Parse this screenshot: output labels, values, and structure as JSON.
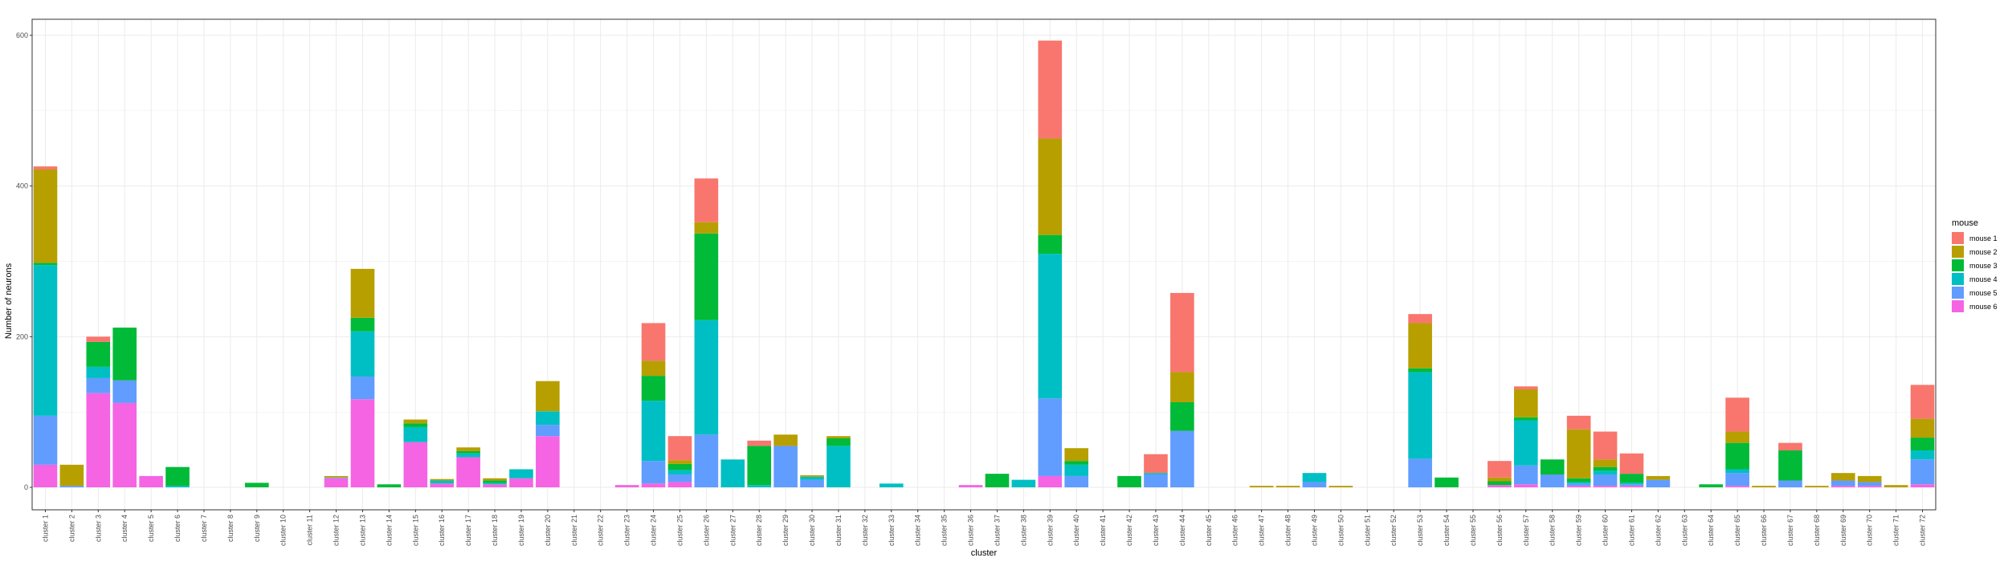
{
  "chart_data": {
    "type": "bar",
    "stacked": true,
    "title": "",
    "xlabel": "cluster",
    "ylabel": "Number of neurons",
    "ylim": [
      0,
      620
    ],
    "yticks": [
      0,
      200,
      400,
      600
    ],
    "grid": true,
    "legend_position": "right",
    "legend_title": "mouse",
    "categories": [
      "cluster 1",
      "cluster 2",
      "cluster 3",
      "cluster 4",
      "cluster 5",
      "cluster 6",
      "cluster 7",
      "cluster 8",
      "cluster 9",
      "cluster 10",
      "cluster 11",
      "cluster 12",
      "cluster 13",
      "cluster 14",
      "cluster 15",
      "cluster 16",
      "cluster 17",
      "cluster 18",
      "cluster 19",
      "cluster 20",
      "cluster 21",
      "cluster 22",
      "cluster 23",
      "cluster 24",
      "cluster 25",
      "cluster 26",
      "cluster 27",
      "cluster 28",
      "cluster 29",
      "cluster 30",
      "cluster 31",
      "cluster 32",
      "cluster 33",
      "cluster 34",
      "cluster 35",
      "cluster 36",
      "cluster 37",
      "cluster 38",
      "cluster 39",
      "cluster 40",
      "cluster 41",
      "cluster 42",
      "cluster 43",
      "cluster 44",
      "cluster 45",
      "cluster 46",
      "cluster 47",
      "cluster 48",
      "cluster 49",
      "cluster 50",
      "cluster 51",
      "cluster 52",
      "cluster 53",
      "cluster 54",
      "cluster 55",
      "cluster 56",
      "cluster 57",
      "cluster 58",
      "cluster 59",
      "cluster 60",
      "cluster 61",
      "cluster 62",
      "cluster 63",
      "cluster 64",
      "cluster 65",
      "cluster 66",
      "cluster 67",
      "cluster 68",
      "cluster 69",
      "cluster 70",
      "cluster 71",
      "cluster 72"
    ],
    "series": [
      {
        "name": "mouse 1",
        "color": "#F8766D",
        "values": [
          4,
          0,
          7,
          0,
          0,
          0,
          0,
          0,
          0,
          0,
          0,
          0,
          0,
          0,
          0,
          0,
          0,
          0,
          0,
          0,
          0,
          0,
          0,
          50,
          32,
          58,
          0,
          7,
          0,
          0,
          0,
          0,
          0,
          0,
          0,
          0,
          0,
          0,
          130,
          0,
          0,
          0,
          25,
          105,
          0,
          0,
          0,
          0,
          0,
          0,
          0,
          0,
          12,
          0,
          0,
          22,
          4,
          0,
          18,
          37,
          27,
          0,
          0,
          0,
          45,
          0,
          10,
          0,
          0,
          0,
          0,
          45
        ]
      },
      {
        "name": "mouse 2",
        "color": "#B79F00",
        "values": [
          124,
          28,
          0,
          0,
          0,
          0,
          0,
          0,
          0,
          0,
          0,
          2,
          65,
          0,
          5,
          2,
          5,
          3,
          0,
          40,
          0,
          0,
          0,
          20,
          5,
          15,
          0,
          0,
          15,
          2,
          3,
          0,
          0,
          0,
          0,
          0,
          0,
          0,
          128,
          17,
          0,
          0,
          0,
          40,
          0,
          0,
          2,
          2,
          0,
          2,
          0,
          0,
          60,
          0,
          0,
          5,
          37,
          0,
          65,
          10,
          0,
          5,
          0,
          0,
          15,
          2,
          0,
          2,
          10,
          8,
          3,
          25
        ]
      },
      {
        "name": "mouse 3",
        "color": "#00BA38",
        "values": [
          3,
          0,
          33,
          70,
          0,
          25,
          0,
          0,
          6,
          0,
          0,
          0,
          18,
          4,
          5,
          0,
          3,
          3,
          0,
          0,
          0,
          0,
          0,
          33,
          8,
          115,
          0,
          52,
          0,
          0,
          10,
          0,
          0,
          0,
          0,
          0,
          18,
          0,
          25,
          5,
          0,
          15,
          0,
          38,
          0,
          0,
          0,
          0,
          0,
          0,
          0,
          0,
          5,
          13,
          0,
          5,
          4,
          20,
          5,
          5,
          12,
          0,
          0,
          4,
          35,
          0,
          40,
          0,
          0,
          0,
          0,
          17
        ]
      },
      {
        "name": "mouse 4",
        "color": "#00BFC4",
        "values": [
          200,
          0,
          15,
          0,
          0,
          2,
          0,
          0,
          0,
          0,
          0,
          0,
          60,
          0,
          20,
          4,
          5,
          2,
          12,
          18,
          0,
          0,
          0,
          80,
          6,
          152,
          37,
          3,
          0,
          4,
          55,
          0,
          5,
          0,
          0,
          0,
          0,
          10,
          192,
          15,
          0,
          0,
          2,
          0,
          0,
          0,
          0,
          0,
          12,
          0,
          0,
          0,
          115,
          0,
          0,
          0,
          60,
          0,
          2,
          5,
          2,
          0,
          0,
          0,
          5,
          0,
          0,
          0,
          0,
          0,
          0,
          12
        ]
      },
      {
        "name": "mouse 5",
        "color": "#619CFF",
        "values": [
          65,
          2,
          20,
          30,
          0,
          0,
          0,
          0,
          0,
          0,
          0,
          1,
          30,
          0,
          0,
          0,
          0,
          0,
          0,
          15,
          0,
          0,
          0,
          30,
          10,
          70,
          0,
          0,
          55,
          10,
          0,
          0,
          0,
          0,
          0,
          0,
          0,
          0,
          103,
          15,
          0,
          0,
          17,
          75,
          0,
          0,
          0,
          0,
          7,
          0,
          0,
          0,
          38,
          0,
          0,
          0,
          25,
          17,
          3,
          15,
          2,
          10,
          0,
          0,
          17,
          0,
          9,
          0,
          7,
          5,
          0,
          33
        ]
      },
      {
        "name": "mouse 6",
        "color": "#F564E3",
        "values": [
          30,
          0,
          125,
          112,
          15,
          0,
          0,
          0,
          0,
          0,
          0,
          12,
          117,
          0,
          60,
          5,
          40,
          4,
          12,
          68,
          0,
          0,
          3,
          5,
          7,
          0,
          0,
          0,
          0,
          0,
          0,
          0,
          0,
          0,
          0,
          3,
          0,
          0,
          15,
          0,
          0,
          0,
          0,
          0,
          0,
          0,
          0,
          0,
          0,
          0,
          0,
          0,
          0,
          0,
          0,
          3,
          4,
          0,
          2,
          2,
          2,
          0,
          0,
          0,
          2,
          0,
          0,
          0,
          2,
          2,
          0,
          4
        ]
      }
    ]
  }
}
